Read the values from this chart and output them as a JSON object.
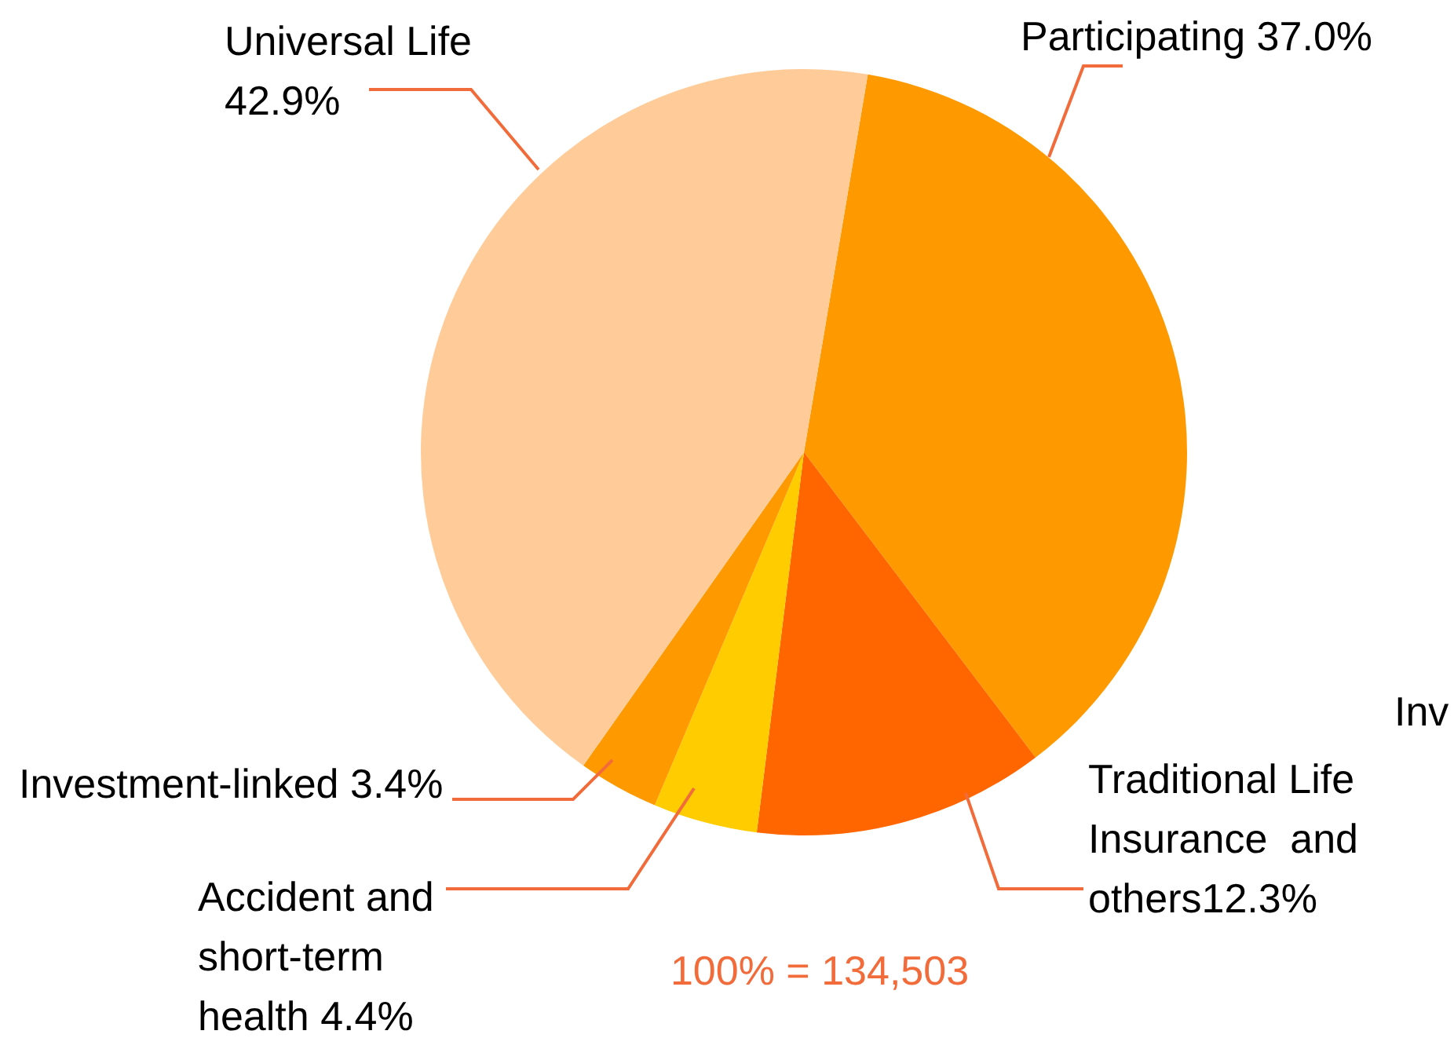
{
  "chart_data": {
    "type": "pie",
    "categories": [
      "Participating",
      "Traditional Life Insurance  and others",
      "Accident and short-term health",
      "Investment-linked",
      "Universal Life"
    ],
    "values": [
      37.0,
      12.3,
      4.4,
      3.4,
      42.9
    ],
    "value_labels": [
      "37.0%",
      "12.3%",
      "4.4%",
      "3.4%",
      "42.9%"
    ],
    "colors": [
      "#ff9900",
      "#ff6600",
      "#ffcc00",
      "#ff9900",
      "#ffcc99"
    ],
    "annotations": [
      "100% = 134,503",
      "Inv"
    ],
    "legend": false
  }
}
